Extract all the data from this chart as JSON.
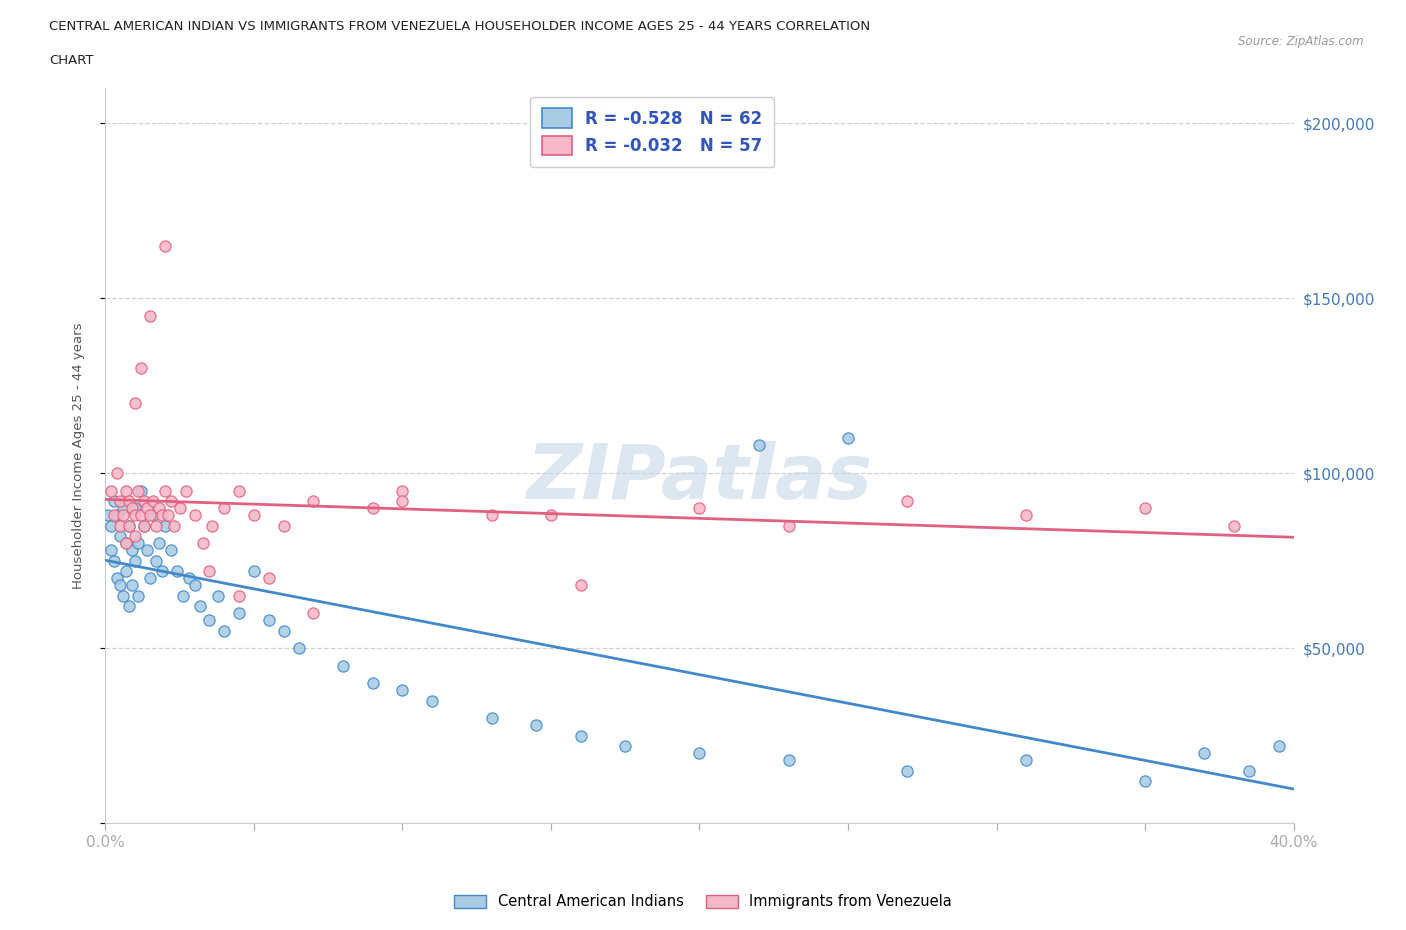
{
  "title_line1": "CENTRAL AMERICAN INDIAN VS IMMIGRANTS FROM VENEZUELA HOUSEHOLDER INCOME AGES 25 - 44 YEARS CORRELATION",
  "title_line2": "CHART",
  "source": "Source: ZipAtlas.com",
  "ylabel": "Householder Income Ages 25 - 44 years",
  "xlim": [
    0.0,
    0.4
  ],
  "ylim": [
    0,
    210000
  ],
  "ytick_values": [
    0,
    50000,
    100000,
    150000,
    200000
  ],
  "legend_r1": "R = -0.528   N = 62",
  "legend_r2": "R = -0.032   N = 57",
  "color_blue": "#a8cce4",
  "color_pink": "#f5b8c8",
  "line_color_blue": "#4488cc",
  "line_color_pink": "#e06080",
  "watermark": "ZIPatlas",
  "blue_scatter_x": [
    0.001,
    0.002,
    0.002,
    0.003,
    0.003,
    0.004,
    0.004,
    0.005,
    0.005,
    0.006,
    0.006,
    0.007,
    0.007,
    0.008,
    0.008,
    0.009,
    0.009,
    0.01,
    0.01,
    0.011,
    0.011,
    0.012,
    0.013,
    0.014,
    0.015,
    0.016,
    0.017,
    0.018,
    0.019,
    0.02,
    0.022,
    0.024,
    0.026,
    0.028,
    0.03,
    0.032,
    0.035,
    0.038,
    0.04,
    0.045,
    0.05,
    0.055,
    0.06,
    0.065,
    0.08,
    0.09,
    0.1,
    0.11,
    0.13,
    0.145,
    0.16,
    0.175,
    0.2,
    0.23,
    0.27,
    0.31,
    0.35,
    0.37,
    0.385,
    0.395,
    0.22,
    0.25
  ],
  "blue_scatter_y": [
    88000,
    85000,
    78000,
    92000,
    75000,
    88000,
    70000,
    82000,
    68000,
    90000,
    65000,
    80000,
    72000,
    85000,
    62000,
    78000,
    68000,
    90000,
    75000,
    80000,
    65000,
    95000,
    85000,
    78000,
    70000,
    88000,
    75000,
    80000,
    72000,
    85000,
    78000,
    72000,
    65000,
    70000,
    68000,
    62000,
    58000,
    65000,
    55000,
    60000,
    72000,
    58000,
    55000,
    50000,
    45000,
    40000,
    38000,
    35000,
    30000,
    28000,
    25000,
    22000,
    20000,
    18000,
    15000,
    18000,
    12000,
    20000,
    15000,
    22000,
    108000,
    110000
  ],
  "pink_scatter_x": [
    0.002,
    0.003,
    0.004,
    0.005,
    0.005,
    0.006,
    0.007,
    0.007,
    0.008,
    0.008,
    0.009,
    0.01,
    0.01,
    0.011,
    0.012,
    0.013,
    0.013,
    0.014,
    0.015,
    0.016,
    0.017,
    0.018,
    0.019,
    0.02,
    0.021,
    0.022,
    0.023,
    0.025,
    0.027,
    0.03,
    0.033,
    0.036,
    0.04,
    0.045,
    0.05,
    0.06,
    0.07,
    0.09,
    0.1,
    0.13,
    0.16,
    0.2,
    0.23,
    0.27,
    0.31,
    0.35,
    0.01,
    0.012,
    0.015,
    0.02,
    0.035,
    0.045,
    0.055,
    0.07,
    0.1,
    0.15,
    0.38
  ],
  "pink_scatter_y": [
    95000,
    88000,
    100000,
    92000,
    85000,
    88000,
    95000,
    80000,
    92000,
    85000,
    90000,
    88000,
    82000,
    95000,
    88000,
    92000,
    85000,
    90000,
    88000,
    92000,
    85000,
    90000,
    88000,
    95000,
    88000,
    92000,
    85000,
    90000,
    95000,
    88000,
    80000,
    85000,
    90000,
    95000,
    88000,
    85000,
    92000,
    90000,
    95000,
    88000,
    68000,
    90000,
    85000,
    92000,
    88000,
    90000,
    120000,
    130000,
    145000,
    165000,
    72000,
    65000,
    70000,
    60000,
    92000,
    88000,
    85000
  ]
}
